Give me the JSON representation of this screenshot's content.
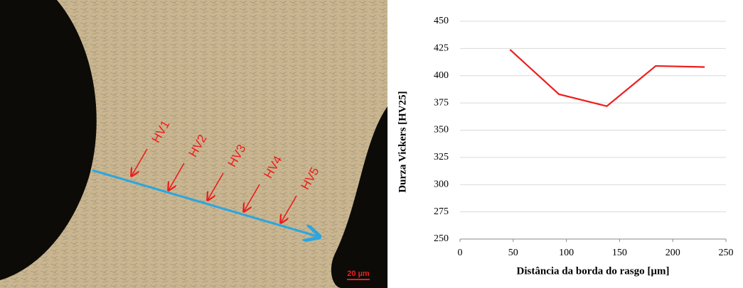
{
  "micrograph": {
    "labels": [
      "HV1",
      "HV2",
      "HV3",
      "HV4",
      "HV5"
    ],
    "scale_bar": "20 µm"
  },
  "chart_data": {
    "type": "line",
    "x_label": "Distância da borda do rasgo [µm]",
    "y_label": "Durza Vickers [HV25]",
    "x": [
      47,
      93,
      138,
      184,
      230
    ],
    "series": [
      {
        "color": "#ee1c1c",
        "values": [
          424,
          383,
          372,
          409,
          408
        ]
      }
    ],
    "xlim": [
      0,
      250
    ],
    "xticks": [
      0,
      50,
      100,
      150,
      200,
      250
    ],
    "ylim": [
      250,
      450
    ],
    "yticks": [
      250,
      275,
      300,
      325,
      350,
      375,
      400,
      425,
      450
    ],
    "grid": true
  }
}
